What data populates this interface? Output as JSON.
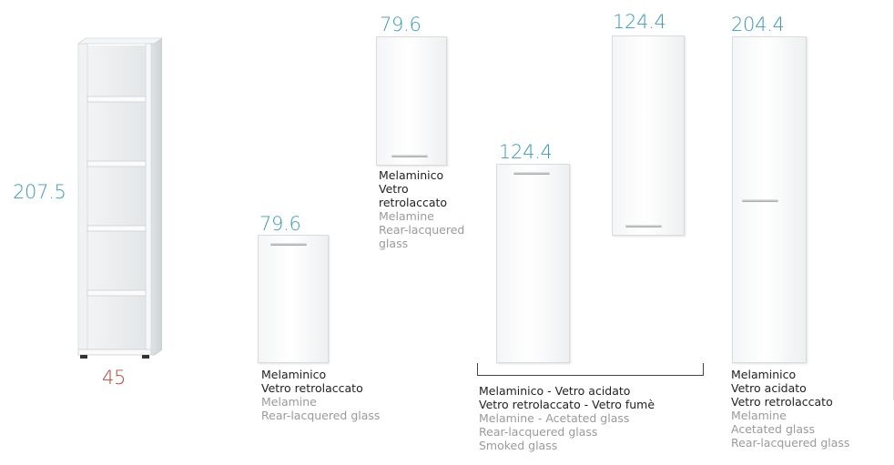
{
  "colors": {
    "dimension": "#3b9bb8",
    "width_dimension": "#b44a3a",
    "caption_italian": "#222222",
    "caption_english": "#9a9a9a"
  },
  "bookcase": {
    "height": "207.5",
    "width": "45"
  },
  "items": [
    {
      "height": "79.6",
      "lines_it": [
        "Melaminico",
        "Vetro retrolaccato"
      ],
      "lines_en": [
        "Melamine",
        "Rear-lacquered glass"
      ]
    },
    {
      "height": "79.6",
      "lines_it": [
        "Melaminico",
        "Vetro",
        "retrolaccato"
      ],
      "lines_en": [
        "Melamine",
        "Rear-lacquered",
        "glass"
      ]
    },
    {
      "height": "124.4",
      "lines_it": [
        "Melaminico - Vetro acidato",
        "Vetro retrolaccato - Vetro fumè"
      ],
      "lines_en": [
        "Melamine - Acetated glass",
        "Rear-lacquered glass",
        "Smoked glass"
      ]
    },
    {
      "height": "124.4"
    },
    {
      "height": "204.4",
      "lines_it": [
        "Melaminico",
        "Vetro acidato",
        "Vetro retrolaccato"
      ],
      "lines_en": [
        "Melamine",
        "Acetated glass",
        "Rear-lacquered glass"
      ]
    }
  ]
}
